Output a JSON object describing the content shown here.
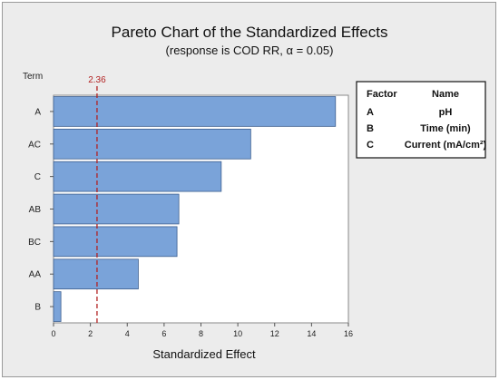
{
  "chart_data": {
    "type": "bar",
    "orientation": "horizontal",
    "title": "Pareto Chart of the Standardized Effects",
    "subtitle": "(response is COD RR, α = 0.05)",
    "ylabel": "Term",
    "xlabel": "Standardized Effect",
    "categories": [
      "A",
      "AC",
      "C",
      "AB",
      "BC",
      "AA",
      "B"
    ],
    "values": [
      15.3,
      10.7,
      9.1,
      6.8,
      6.7,
      4.6,
      0.4
    ],
    "xlim": [
      0,
      16
    ],
    "xticks": [
      0,
      2,
      4,
      6,
      8,
      10,
      12,
      14,
      16
    ],
    "reference_line": {
      "value": 2.36,
      "label": "2.36",
      "color": "#b22222"
    },
    "bar_color": "#7aa3d9",
    "bar_edge_color": "#3d5f8f",
    "grid": false,
    "legend": {
      "placement": "top-right",
      "header": {
        "factor": "Factor",
        "name": "Name"
      },
      "rows": [
        {
          "factor": "A",
          "name": "pH"
        },
        {
          "factor": "B",
          "name": "Time (min)"
        },
        {
          "factor": "C",
          "name": "Current (mA/cm²)"
        }
      ]
    }
  }
}
